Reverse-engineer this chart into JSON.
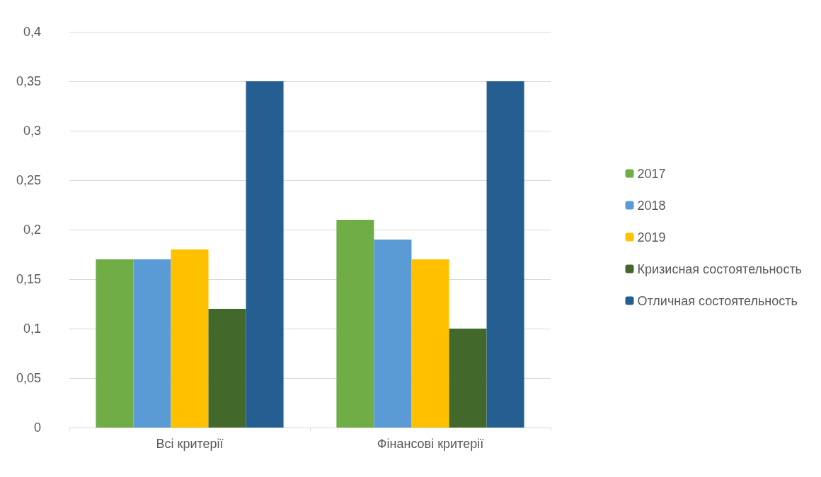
{
  "chart_data": {
    "type": "bar",
    "categories": [
      "Всі критерії",
      "Фінансові критерії"
    ],
    "series": [
      {
        "name": "2017",
        "color": "#70ad47",
        "values": [
          0.17,
          0.21
        ]
      },
      {
        "name": "2018",
        "color": "#5b9bd5",
        "values": [
          0.17,
          0.19
        ]
      },
      {
        "name": "2019",
        "color": "#ffc000",
        "values": [
          0.18,
          0.17
        ]
      },
      {
        "name": "Кризисная состоятельность",
        "color": "#43682b",
        "values": [
          0.12,
          0.1
        ]
      },
      {
        "name": "Отличная состоятельность",
        "color": "#255e91",
        "values": [
          0.35,
          0.35
        ]
      }
    ],
    "ylim": [
      0,
      0.4
    ],
    "yticks": [
      0,
      {
        "value": 0.05,
        "label": "0,05"
      },
      {
        "value": 0.1,
        "label": "0,1"
      },
      {
        "value": 0.15,
        "label": "0,15"
      },
      {
        "value": 0.2,
        "label": "0,2"
      },
      {
        "value": 0.25,
        "label": "0,25"
      },
      {
        "value": 0.3,
        "label": "0,3"
      },
      {
        "value": 0.35,
        "label": "0,35"
      },
      {
        "value": 0.4,
        "label": "0,4"
      }
    ],
    "grid": "y",
    "legend": "right"
  }
}
